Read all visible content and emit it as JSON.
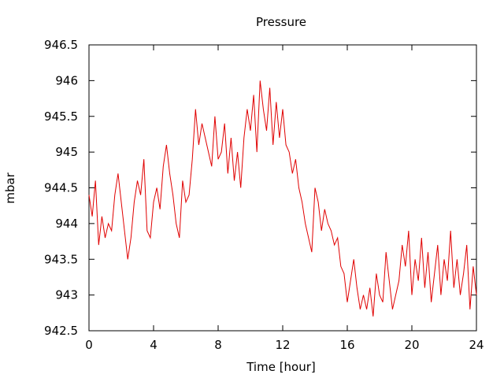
{
  "chart_data": {
    "type": "line",
    "title": "Pressure",
    "xlabel": "Time [hour]",
    "ylabel": "mbar",
    "xlim": [
      0,
      24
    ],
    "ylim": [
      942.5,
      946.5
    ],
    "xticks": [
      0,
      4,
      8,
      12,
      16,
      20,
      24
    ],
    "xtick_labels": [
      "0",
      "4",
      "8",
      "12",
      "16",
      "20",
      "24"
    ],
    "yticks": [
      942.5,
      943,
      943.5,
      944,
      944.5,
      945,
      945.5,
      946,
      946.5
    ],
    "ytick_labels": [
      "942.5",
      "943",
      "943.5",
      "944",
      "944.5",
      "945",
      "945.5",
      "946",
      "946.5"
    ],
    "grid": false,
    "line_color": "#e00000",
    "series": [
      {
        "x": [
          0,
          0.2,
          0.4,
          0.6,
          0.8,
          1.0,
          1.2,
          1.4,
          1.6,
          1.8,
          2.0,
          2.2,
          2.4,
          2.6,
          2.8,
          3.0,
          3.2,
          3.4,
          3.6,
          3.8,
          4.0,
          4.2,
          4.4,
          4.6,
          4.8,
          5.0,
          5.2,
          5.4,
          5.6,
          5.8,
          6.0,
          6.2,
          6.4,
          6.6,
          6.8,
          7.0,
          7.2,
          7.4,
          7.6,
          7.8,
          8.0,
          8.2,
          8.4,
          8.6,
          8.8,
          9.0,
          9.2,
          9.4,
          9.6,
          9.8,
          10.0,
          10.2,
          10.4,
          10.6,
          10.8,
          11.0,
          11.2,
          11.4,
          11.6,
          11.8,
          12.0,
          12.2,
          12.4,
          12.6,
          12.8,
          13.0,
          13.2,
          13.4,
          13.6,
          13.8,
          14.0,
          14.2,
          14.4,
          14.6,
          14.8,
          15.0,
          15.2,
          15.4,
          15.6,
          15.8,
          16.0,
          16.2,
          16.4,
          16.6,
          16.8,
          17.0,
          17.2,
          17.4,
          17.6,
          17.8,
          18.0,
          18.2,
          18.4,
          18.6,
          18.8,
          19.0,
          19.2,
          19.4,
          19.6,
          19.8,
          20.0,
          20.2,
          20.4,
          20.6,
          20.8,
          21.0,
          21.2,
          21.4,
          21.6,
          21.8,
          22.0,
          22.2,
          22.4,
          22.6,
          22.8,
          23.0,
          23.2,
          23.4,
          23.6,
          23.8,
          24.0
        ],
        "values": [
          944.4,
          944.1,
          944.6,
          943.7,
          944.1,
          943.8,
          944.0,
          943.9,
          944.4,
          944.7,
          944.3,
          943.9,
          943.5,
          943.8,
          944.3,
          944.6,
          944.4,
          944.9,
          943.9,
          943.8,
          944.3,
          944.5,
          944.2,
          944.8,
          945.1,
          944.7,
          944.4,
          944.0,
          943.8,
          944.6,
          944.3,
          944.4,
          944.9,
          945.6,
          945.1,
          945.4,
          945.2,
          945.0,
          944.8,
          945.5,
          944.9,
          945.0,
          945.4,
          944.7,
          945.2,
          944.6,
          945.0,
          944.5,
          945.2,
          945.6,
          945.3,
          945.8,
          945.0,
          946.0,
          945.6,
          945.3,
          945.9,
          945.1,
          945.7,
          945.2,
          945.6,
          945.1,
          945.0,
          944.7,
          944.9,
          944.5,
          944.3,
          944.0,
          943.8,
          943.6,
          944.5,
          944.3,
          943.9,
          944.2,
          944.0,
          943.9,
          943.7,
          943.8,
          943.4,
          943.3,
          942.9,
          943.2,
          943.5,
          943.1,
          942.8,
          943.0,
          942.8,
          943.1,
          942.7,
          943.3,
          943.0,
          942.9,
          943.6,
          943.2,
          942.8,
          943.0,
          943.2,
          943.7,
          943.4,
          943.9,
          943.0,
          943.5,
          943.2,
          943.8,
          943.1,
          943.6,
          942.9,
          943.3,
          943.7,
          943.0,
          943.5,
          943.2,
          943.9,
          943.1,
          943.5,
          943.0,
          943.3,
          943.7,
          942.8,
          943.4,
          943.0
        ]
      }
    ]
  }
}
